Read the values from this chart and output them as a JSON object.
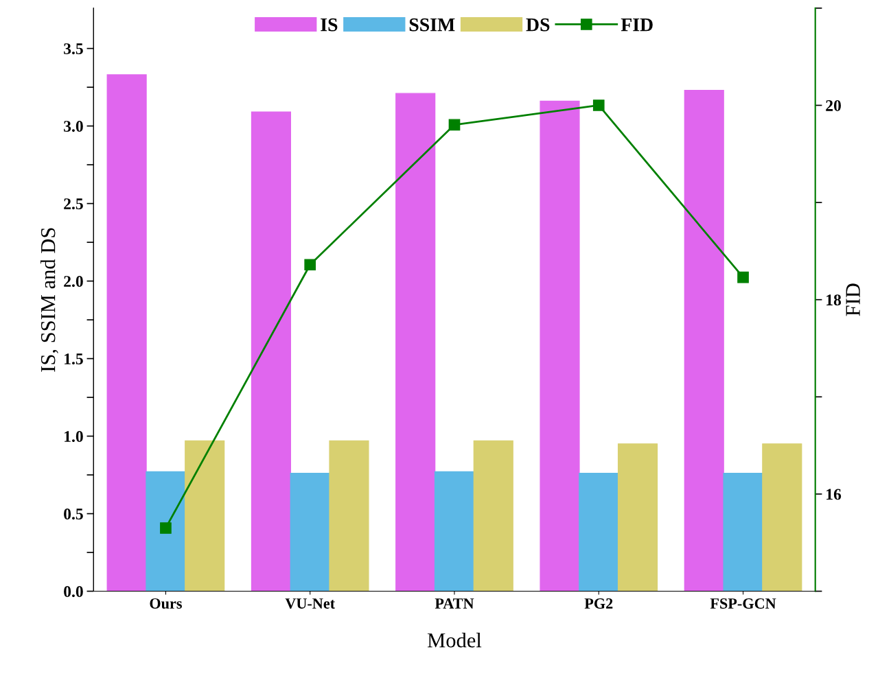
{
  "chart_data": {
    "type": "bar",
    "xlabel": "Model",
    "ylabel": "IS, SSIM and DS",
    "y2label": "FID",
    "categories": [
      "Ours",
      "VU-Net",
      "PATN",
      "PG2",
      "FSP-GCN"
    ],
    "series": [
      {
        "name": "IS",
        "color": "#e066ee",
        "values": [
          3.33,
          3.09,
          3.21,
          3.16,
          3.23
        ]
      },
      {
        "name": "SSIM",
        "color": "#5cb8e6",
        "values": [
          0.77,
          0.76,
          0.77,
          0.76,
          0.76
        ]
      },
      {
        "name": "DS",
        "color": "#d8d070",
        "values": [
          0.97,
          0.97,
          0.97,
          0.95,
          0.95
        ]
      },
      {
        "name": "FID",
        "type": "line",
        "axis": "y2",
        "color": "#008000",
        "marker": "square",
        "values": [
          15.65,
          18.36,
          19.8,
          20.0,
          18.23
        ]
      }
    ],
    "ylim": [
      0,
      3.76
    ],
    "yticks": [
      {
        "value": 0,
        "label": "0.0"
      },
      {
        "value": 0.25,
        "label": null
      },
      {
        "value": 0.5,
        "label": "0.5"
      },
      {
        "value": 0.75,
        "label": null
      },
      {
        "value": 1,
        "label": "1.0"
      },
      {
        "value": 1.25,
        "label": null
      },
      {
        "value": 1.5,
        "label": "1.5"
      },
      {
        "value": 1.75,
        "label": null
      },
      {
        "value": 2,
        "label": "2.0"
      },
      {
        "value": 2.25,
        "label": null
      },
      {
        "value": 2.5,
        "label": "2.5"
      },
      {
        "value": 2.75,
        "label": null
      },
      {
        "value": 3,
        "label": "3.0"
      },
      {
        "value": 3.25,
        "label": null
      },
      {
        "value": 3.5,
        "label": "3.5"
      }
    ],
    "y2lim": [
      15,
      21
    ],
    "y2ticks": [
      {
        "value": 15,
        "label": null
      },
      16,
      {
        "value": 17,
        "label": null
      },
      18,
      {
        "value": 19,
        "label": null
      },
      20,
      {
        "value": 21,
        "label": null
      }
    ],
    "legend": "top",
    "grid": false
  }
}
